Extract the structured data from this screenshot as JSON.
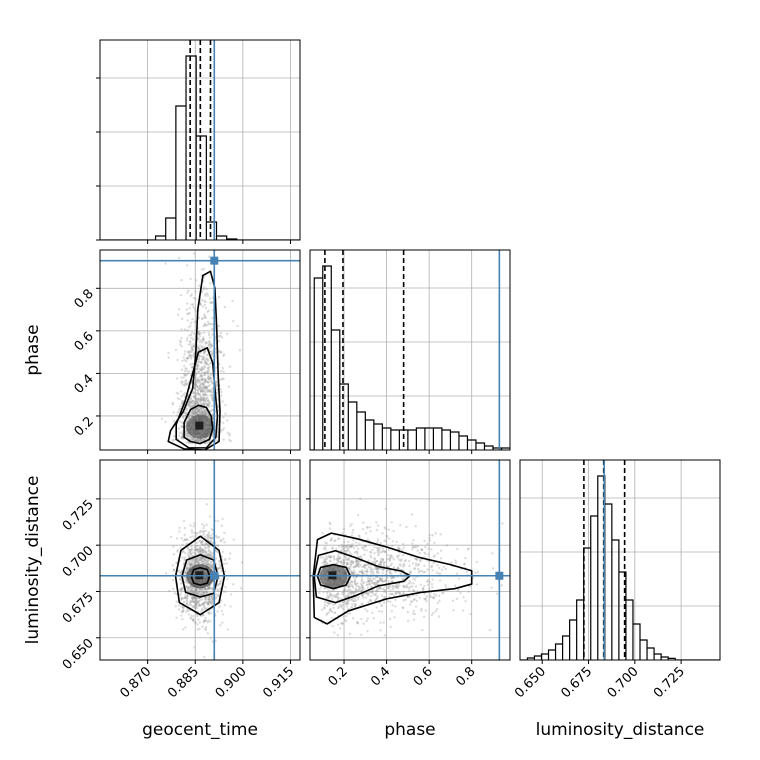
{
  "colors": {
    "truth": "#4682b4",
    "hist": "#000000",
    "grid": "#b0b0b0",
    "scatter": "#9a9a9a"
  },
  "chart_data": {
    "type": "corner",
    "parameters": [
      "geocent_time",
      "phase",
      "luminosity_distance"
    ],
    "truths": [
      0.891,
      0.93,
      0.6835
    ],
    "ranges": [
      [
        0.855,
        0.918
      ],
      [
        0.04,
        0.98
      ],
      [
        0.638,
        0.746
      ]
    ],
    "ticks": {
      "geocent_time": [
        "0.870",
        "0.885",
        "0.900",
        "0.915"
      ],
      "phase": [
        "0.2",
        "0.4",
        "0.6",
        "0.8"
      ],
      "luminosity_distance": [
        "0.650",
        "0.675",
        "0.700",
        "0.725"
      ]
    },
    "axis_labels": {
      "bottom": [
        "geocent_time",
        "phase",
        "luminosity_distance"
      ],
      "left": [
        "phase",
        "luminosity_distance"
      ]
    },
    "quantiles": {
      "geocent_time": [
        0.8834,
        0.8866,
        0.8898
      ],
      "phase": [
        0.11,
        0.195,
        0.48
      ],
      "luminosity_distance": [
        0.6725,
        0.6832,
        0.6945
      ]
    },
    "marginals": {
      "geocent_time": {
        "edges": [
          0.8725,
          0.8757,
          0.8789,
          0.8821,
          0.8853,
          0.8885,
          0.8917,
          0.8949,
          0.8981
        ],
        "counts": [
          0.02,
          0.11,
          0.67,
          0.92,
          0.52,
          0.09,
          0.02,
          0.005
        ]
      },
      "phase": {
        "edges": [
          0.06,
          0.1,
          0.14,
          0.18,
          0.22,
          0.26,
          0.3,
          0.34,
          0.38,
          0.42,
          0.46,
          0.5,
          0.54,
          0.58,
          0.62,
          0.66,
          0.7,
          0.74,
          0.78,
          0.82,
          0.86,
          0.9,
          0.94,
          0.98
        ],
        "counts": [
          0.86,
          0.92,
          0.6,
          0.33,
          0.24,
          0.19,
          0.15,
          0.13,
          0.11,
          0.1,
          0.1,
          0.1,
          0.11,
          0.11,
          0.11,
          0.1,
          0.09,
          0.07,
          0.05,
          0.035,
          0.02,
          0.01,
          0.01
        ]
      },
      "luminosity_distance": {
        "edges": [
          0.642,
          0.6458,
          0.6496,
          0.6534,
          0.6572,
          0.661,
          0.6648,
          0.6686,
          0.6724,
          0.6762,
          0.68,
          0.6838,
          0.6876,
          0.6914,
          0.6952,
          0.699,
          0.7028,
          0.7066,
          0.7104,
          0.7142,
          0.718,
          0.7218
        ],
        "counts": [
          0.01,
          0.02,
          0.03,
          0.05,
          0.08,
          0.12,
          0.2,
          0.3,
          0.56,
          0.72,
          0.92,
          0.78,
          0.6,
          0.44,
          0.3,
          0.18,
          0.1,
          0.06,
          0.03,
          0.015,
          0.008
        ]
      }
    },
    "joint": [
      {
        "x": "geocent_time",
        "y": "phase",
        "center": [
          0.8866,
          0.15
        ],
        "contours": [
          [
            [
              0.8815,
              0.1
            ],
            [
              0.8835,
              0.08
            ],
            [
              0.8865,
              0.07
            ],
            [
              0.8895,
              0.09
            ],
            [
              0.8905,
              0.14
            ],
            [
              0.89,
              0.2
            ],
            [
              0.8885,
              0.24
            ],
            [
              0.886,
              0.25
            ],
            [
              0.8835,
              0.23
            ],
            [
              0.8815,
              0.17
            ]
          ],
          [
            [
              0.879,
              0.09
            ],
            [
              0.883,
              0.05
            ],
            [
              0.8885,
              0.05
            ],
            [
              0.8915,
              0.1
            ],
            [
              0.892,
              0.2
            ],
            [
              0.8912,
              0.33
            ],
            [
              0.8905,
              0.45
            ],
            [
              0.8888,
              0.52
            ],
            [
              0.886,
              0.5
            ],
            [
              0.8842,
              0.4
            ],
            [
              0.8818,
              0.27
            ],
            [
              0.879,
              0.16
            ]
          ],
          [
            [
              0.8765,
              0.08
            ],
            [
              0.8815,
              0.045
            ],
            [
              0.888,
              0.04
            ],
            [
              0.8925,
              0.08
            ],
            [
              0.8928,
              0.22
            ],
            [
              0.8922,
              0.4
            ],
            [
              0.8918,
              0.6
            ],
            [
              0.8912,
              0.8
            ],
            [
              0.8898,
              0.88
            ],
            [
              0.8874,
              0.86
            ],
            [
              0.8858,
              0.7
            ],
            [
              0.8852,
              0.5
            ],
            [
              0.8842,
              0.33
            ],
            [
              0.8812,
              0.22
            ],
            [
              0.8772,
              0.13
            ]
          ]
        ]
      },
      {
        "x": "geocent_time",
        "y": "luminosity_distance",
        "center": [
          0.8866,
          0.6832
        ],
        "contours": [
          [
            [
              0.8845,
              0.6795
            ],
            [
              0.8866,
              0.6785
            ],
            [
              0.8888,
              0.6795
            ],
            [
              0.8895,
              0.6832
            ],
            [
              0.8888,
              0.6868
            ],
            [
              0.8866,
              0.6878
            ],
            [
              0.8845,
              0.6868
            ],
            [
              0.8838,
              0.6832
            ]
          ],
          [
            [
              0.882,
              0.6745
            ],
            [
              0.8866,
              0.672
            ],
            [
              0.8908,
              0.674
            ],
            [
              0.8922,
              0.6832
            ],
            [
              0.8908,
              0.692
            ],
            [
              0.8866,
              0.6948
            ],
            [
              0.8823,
              0.692
            ],
            [
              0.8808,
              0.6832
            ]
          ],
          [
            [
              0.88,
              0.669
            ],
            [
              0.8866,
              0.6625
            ],
            [
              0.8925,
              0.669
            ],
            [
              0.8942,
              0.6832
            ],
            [
              0.8925,
              0.6972
            ],
            [
              0.8866,
              0.7048
            ],
            [
              0.8805,
              0.6972
            ],
            [
              0.8788,
              0.6832
            ]
          ]
        ]
      },
      {
        "x": "phase",
        "y": "luminosity_distance",
        "center": [
          0.15,
          0.6832
        ],
        "contours": [
          [
            [
              0.09,
              0.6785
            ],
            [
              0.15,
              0.6765
            ],
            [
              0.21,
              0.6785
            ],
            [
              0.23,
              0.6832
            ],
            [
              0.21,
              0.688
            ],
            [
              0.15,
              0.6895
            ],
            [
              0.09,
              0.688
            ],
            [
              0.075,
              0.6832
            ]
          ],
          [
            [
              0.07,
              0.672
            ],
            [
              0.16,
              0.669
            ],
            [
              0.26,
              0.673
            ],
            [
              0.36,
              0.678
            ],
            [
              0.48,
              0.6805
            ],
            [
              0.51,
              0.6835
            ],
            [
              0.47,
              0.686
            ],
            [
              0.36,
              0.6885
            ],
            [
              0.26,
              0.693
            ],
            [
              0.16,
              0.697
            ],
            [
              0.08,
              0.6945
            ],
            [
              0.06,
              0.6832
            ]
          ],
          [
            [
              0.06,
              0.661
            ],
            [
              0.12,
              0.6575
            ],
            [
              0.22,
              0.6645
            ],
            [
              0.4,
              0.671
            ],
            [
              0.56,
              0.6745
            ],
            [
              0.72,
              0.6765
            ],
            [
              0.8,
              0.679
            ],
            [
              0.8,
              0.6862
            ],
            [
              0.7,
              0.6895
            ],
            [
              0.55,
              0.6935
            ],
            [
              0.4,
              0.699
            ],
            [
              0.26,
              0.7035
            ],
            [
              0.14,
              0.7065
            ],
            [
              0.075,
              0.703
            ],
            [
              0.055,
              0.6832
            ]
          ]
        ]
      }
    ]
  }
}
